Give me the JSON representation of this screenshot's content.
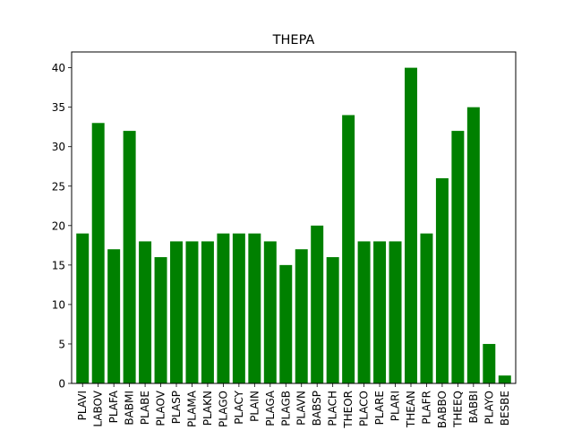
{
  "chart_data": {
    "type": "bar",
    "title": "THEPA",
    "xlabel": "",
    "ylabel": "",
    "categories": [
      "PLAVI",
      "LABOV",
      "PLAFA",
      "BABMI",
      "PLABE",
      "PLAOV",
      "PLASP",
      "PLAMA",
      "PLAKN",
      "PLAGO",
      "PLACY",
      "PLAIN",
      "PLAGA",
      "PLAGB",
      "PLAVN",
      "BABSP",
      "PLACH",
      "THEOR",
      "PLACO",
      "PLARE",
      "PLARI",
      "THEAN",
      "PLAFR",
      "BABBO",
      "THEEQ",
      "BABBI",
      "PLAYO",
      "BESBE"
    ],
    "values": [
      19,
      33,
      17,
      32,
      18,
      16,
      18,
      18,
      18,
      19,
      19,
      19,
      18,
      15,
      17,
      20,
      16,
      34,
      18,
      18,
      18,
      40,
      19,
      26,
      32,
      35,
      5,
      1
    ],
    "ylim": [
      0,
      42
    ],
    "yticks": [
      0,
      5,
      10,
      15,
      20,
      25,
      30,
      35,
      40
    ],
    "bar_color": "#008000",
    "grid": false,
    "legend": "none"
  }
}
